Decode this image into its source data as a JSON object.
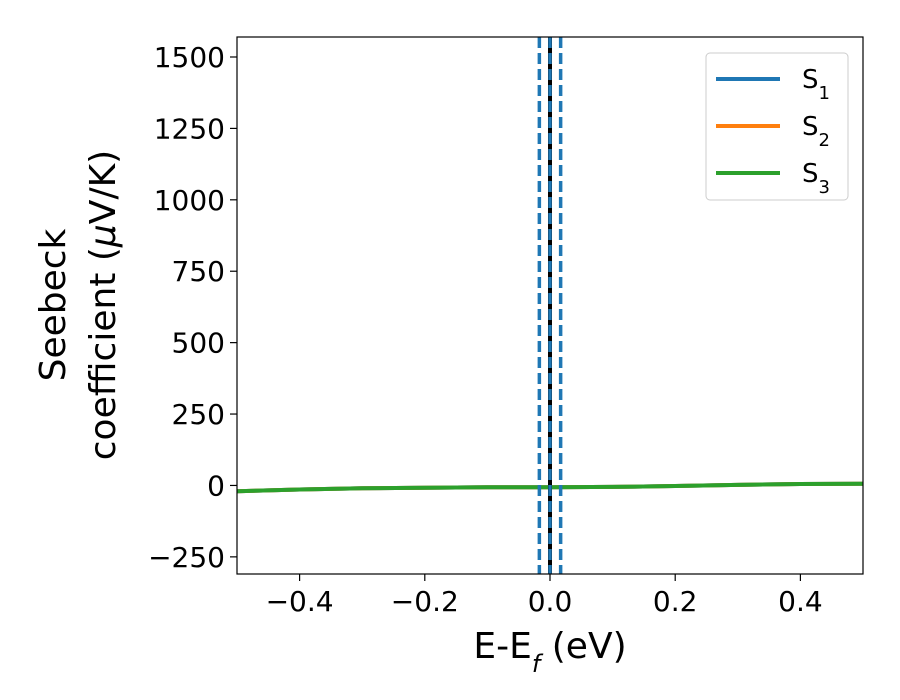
{
  "chart_data": {
    "type": "line",
    "xlabel": "E-E",
    "xlabel_sub": "f",
    "xlabel_unit": " (eV)",
    "ylabel_line1": "Seebeck",
    "ylabel_line2": "coefficient  (",
    "ylabel_mu": "μ",
    "ylabel_unit": "V/K)",
    "xlim": [
      -0.5,
      0.5
    ],
    "ylim": [
      -310,
      1570
    ],
    "x_ticks": [
      -0.4,
      -0.2,
      0.0,
      0.2,
      0.4
    ],
    "x_tick_labels": [
      "−0.4",
      "−0.2",
      "0.0",
      "0.2",
      "0.4"
    ],
    "y_ticks": [
      -250,
      0,
      250,
      500,
      750,
      1000,
      1250,
      1500
    ],
    "y_tick_labels": [
      "−250",
      "0",
      "250",
      "500",
      "750",
      "1000",
      "1250",
      "1500"
    ],
    "grid": false,
    "legend_position": "top-right",
    "series": [
      {
        "name": "S",
        "sub": "1",
        "color": "#1f77b4",
        "x": [
          -0.5,
          -0.4,
          -0.3,
          -0.2,
          -0.1,
          0.0,
          0.1,
          0.2,
          0.3,
          0.4,
          0.5
        ],
        "y": [
          -20,
          -14,
          -10,
          -8,
          -6,
          -6,
          -5,
          -2,
          2,
          5,
          6
        ]
      },
      {
        "name": "S",
        "sub": "2",
        "color": "#ff7f0e",
        "x": [
          -0.5,
          -0.4,
          -0.3,
          -0.2,
          -0.1,
          0.0,
          0.1,
          0.2,
          0.3,
          0.4,
          0.5
        ],
        "y": [
          -20,
          -14,
          -10,
          -8,
          -6,
          -6,
          -5,
          -2,
          2,
          5,
          6
        ]
      },
      {
        "name": "S",
        "sub": "3",
        "color": "#2ca02c",
        "x": [
          -0.5,
          -0.4,
          -0.3,
          -0.2,
          -0.1,
          0.0,
          0.1,
          0.2,
          0.3,
          0.4,
          0.5
        ],
        "y": [
          -20,
          -14,
          -10,
          -8,
          -6,
          -6,
          -5,
          -2,
          2,
          5,
          6
        ]
      }
    ],
    "vlines": [
      {
        "x": 0.0,
        "style": "solid",
        "color": "#000000"
      },
      {
        "x": -0.017,
        "style": "dashed",
        "color": "#1f77b4"
      },
      {
        "x": 0.0,
        "style": "dashed",
        "color": "#1f77b4"
      },
      {
        "x": 0.017,
        "style": "dashed",
        "color": "#1f77b4"
      }
    ]
  }
}
